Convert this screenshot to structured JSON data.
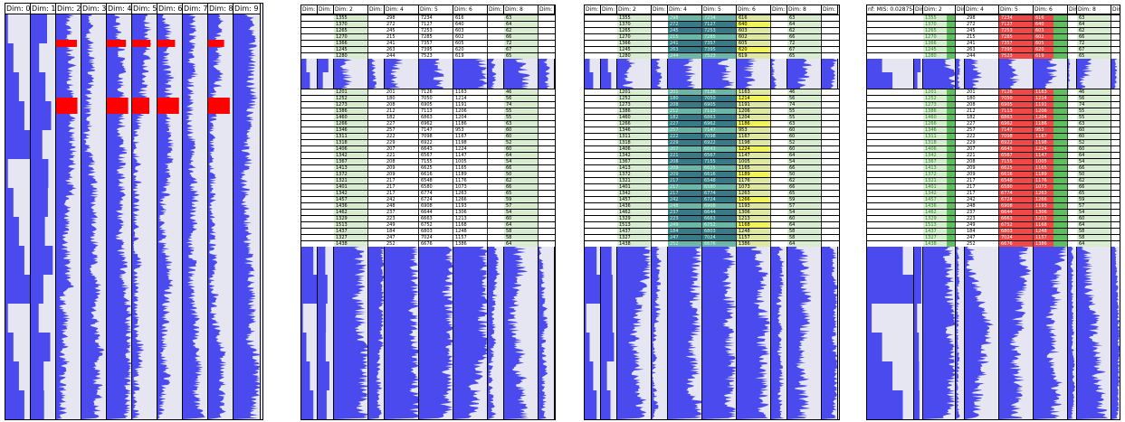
{
  "colors": {
    "bar": "#4a4aee",
    "background": "#e6e6f2",
    "highlight_red": "#ff0000",
    "light_green": "#d8ecd0",
    "green": "#5fbf5f",
    "teal_dark": "#3a7a88",
    "teal_light": "#6bb6a8",
    "yellow": "#f2f25a",
    "red_cell": "#f04848"
  },
  "panels": [
    {
      "id": "panel-1",
      "columns": [
        "Dim: 0",
        "Dim: 1",
        "Dim: 2",
        "Dim: 3",
        "Dim: 4",
        "Dim: 5",
        "Dim: 6",
        "Dim: 7",
        "Dim: 8",
        "Dim: 9"
      ]
    },
    {
      "id": "panel-2",
      "columns": [
        "Dim: 0",
        "Dim: 1",
        "Dim: 2",
        "Dim: 3",
        "Dim: 4",
        "Dim: 5",
        "Dim: 6",
        "Dim: 7",
        "Dim: 8",
        "Dim: 9"
      ]
    },
    {
      "id": "panel-3",
      "columns": [
        "Dim: 0",
        "Dim: 1",
        "Dim: 2",
        "Dim: 3",
        "Dim: 4",
        "Dim: 5",
        "Dim: 6",
        "Dim: 7",
        "Dim: 8",
        "Dim: 9"
      ]
    },
    {
      "id": "panel-4",
      "columns": [
        "nf: MIS: 0.0287541",
        "Dim: 1",
        "Dim: 2",
        "Dim: 3",
        "Dim: 4",
        "Dim: 5",
        "Dim: 6",
        "Dim: 7",
        "Dim: 8",
        "Dim: 9"
      ]
    }
  ],
  "table_rows_group1": [
    [
      "1355",
      "298",
      "7234",
      "616",
      "63"
    ],
    [
      "1370",
      "272",
      "7127",
      "640",
      "64"
    ],
    [
      "1265",
      "245",
      "7253",
      "603",
      "62"
    ],
    [
      "1270",
      "215",
      "7285",
      "602",
      "66"
    ],
    [
      "1366",
      "241",
      "7357",
      "605",
      "72"
    ],
    [
      "1245",
      "263",
      "7395",
      "620",
      "67"
    ],
    [
      "1280",
      "244",
      "7523",
      "619",
      "65"
    ]
  ],
  "table_rows_group2": [
    [
      "1201",
      "201",
      "7126",
      "1163",
      "46"
    ],
    [
      "1252",
      "180",
      "7050",
      "1214",
      "56"
    ],
    [
      "1273",
      "208",
      "6905",
      "1191",
      "74"
    ],
    [
      "1386",
      "212",
      "7113",
      "1206",
      "55"
    ],
    [
      "1460",
      "182",
      "6863",
      "1204",
      "55"
    ],
    [
      "1266",
      "227",
      "6962",
      "1186",
      "63"
    ],
    [
      "1346",
      "257",
      "7147",
      "953",
      "60"
    ],
    [
      "1311",
      "222",
      "7098",
      "1167",
      "60"
    ],
    [
      "1318",
      "229",
      "6922",
      "1198",
      "52"
    ],
    [
      "1406",
      "207",
      "6643",
      "1224",
      "60"
    ],
    [
      "1342",
      "221",
      "6567",
      "1147",
      "64"
    ],
    [
      "1367",
      "208",
      "7155",
      "1005",
      "54"
    ],
    [
      "1413",
      "209",
      "6625",
      "1165",
      "66"
    ],
    [
      "1372",
      "209",
      "6616",
      "1189",
      "50"
    ],
    [
      "1321",
      "217",
      "6548",
      "1176",
      "62"
    ],
    [
      "1401",
      "217",
      "6580",
      "1073",
      "66"
    ],
    [
      "1342",
      "217",
      "6774",
      "1263",
      "65"
    ],
    [
      "1457",
      "242",
      "6724",
      "1266",
      "59"
    ],
    [
      "1436",
      "248",
      "6908",
      "1193",
      "57"
    ],
    [
      "1462",
      "237",
      "6644",
      "1306",
      "54"
    ],
    [
      "1329",
      "223",
      "6663",
      "1213",
      "60"
    ],
    [
      "1513",
      "249",
      "6752",
      "1168",
      "64"
    ],
    [
      "1437",
      "184",
      "6803",
      "1248",
      "58"
    ],
    [
      "1327",
      "247",
      "7024",
      "1157",
      "58"
    ],
    [
      "1438",
      "252",
      "6676",
      "1386",
      "64"
    ]
  ]
}
